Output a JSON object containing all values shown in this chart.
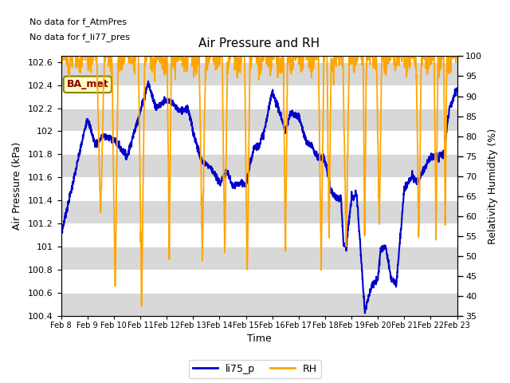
{
  "title": "Air Pressure and RH",
  "ylabel_left": "Air Pressure (kPa)",
  "ylabel_right": "Relativity Humidity (%)",
  "xlabel": "Time",
  "text_line1": "No data for f_AtmPres",
  "text_line2": "No data for f_li77_pres",
  "ba_met_label": "BA_met",
  "ylim_left": [
    100.4,
    102.65
  ],
  "ylim_right": [
    35,
    100
  ],
  "yticks_left": [
    100.4,
    100.6,
    100.8,
    101.0,
    101.2,
    101.4,
    101.6,
    101.8,
    102.0,
    102.2,
    102.4,
    102.6
  ],
  "yticks_right": [
    35,
    40,
    45,
    50,
    55,
    60,
    65,
    70,
    75,
    80,
    85,
    90,
    95,
    100
  ],
  "xtick_labels": [
    "Feb 8",
    "Feb 9",
    "Feb 10",
    "Feb 11",
    "Feb 12",
    "Feb 13",
    "Feb 14",
    "Feb 15",
    "Feb 16",
    "Feb 17",
    "Feb 18",
    "Feb 19",
    "Feb 20",
    "Feb 21",
    "Feb 22",
    "Feb 23"
  ],
  "color_pressure": "#0000CC",
  "color_rh": "#FFA500",
  "linewidth_pressure": 1.5,
  "linewidth_rh": 1.3,
  "background_color": "#FFFFFF",
  "band_colors": [
    "#D8D8D8",
    "#FFFFFF"
  ],
  "legend_labels": [
    "li75_p",
    "RH"
  ],
  "n_days": 15
}
